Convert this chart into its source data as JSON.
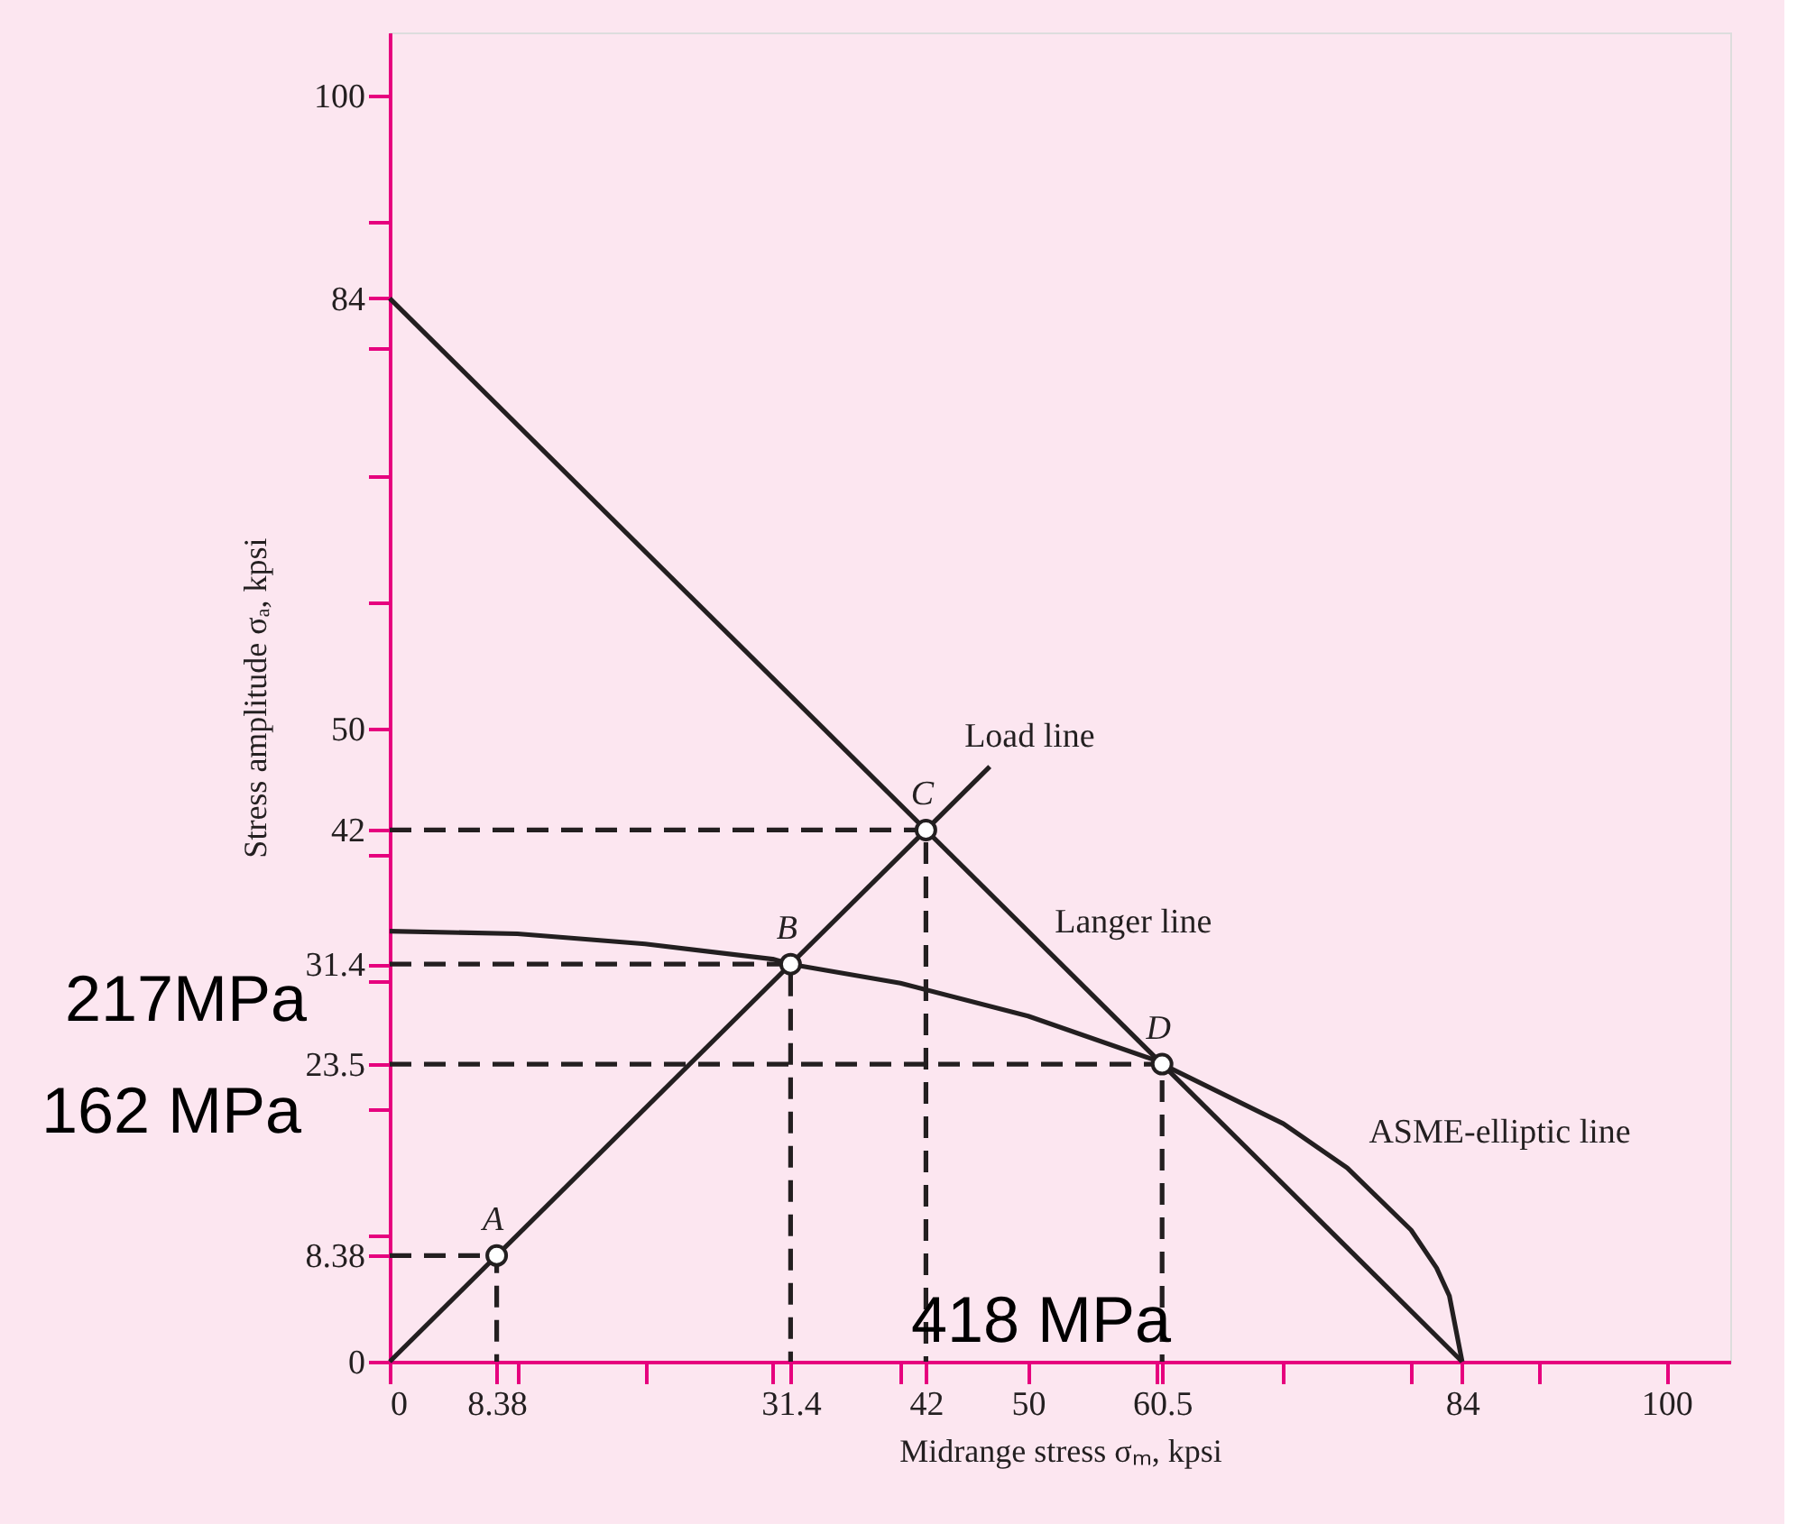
{
  "chart_data": {
    "type": "line",
    "xlabel": "Midrange stress σₘ, kpsi",
    "ylabel": "Stress amplitude σₐ, kpsi",
    "xlim": [
      0,
      105
    ],
    "ylim": [
      0,
      105
    ],
    "xticks": [
      0,
      8.38,
      {
        "value": 10,
        "label": null
      },
      {
        "value": 20,
        "label": null
      },
      {
        "value": 30,
        "label": null
      },
      31.4,
      {
        "value": 40,
        "label": null
      },
      42,
      50,
      {
        "value": 60,
        "label": null
      },
      60.5,
      {
        "value": 70,
        "label": null
      },
      {
        "value": 80,
        "label": null
      },
      84,
      {
        "value": 90,
        "label": null
      },
      100
    ],
    "yticks": [
      0,
      8.38,
      {
        "value": 10,
        "label": null
      },
      {
        "value": 20,
        "label": null
      },
      23.5,
      {
        "value": 30,
        "label": null
      },
      31.4,
      {
        "value": 40,
        "label": null
      },
      42,
      50,
      {
        "value": 60,
        "label": null
      },
      {
        "value": 70,
        "label": null
      },
      {
        "value": 80,
        "label": null
      },
      84,
      {
        "value": 90,
        "label": null
      },
      100
    ],
    "grid": false,
    "legend": false,
    "series": [
      {
        "name": "Load line",
        "color": "#231f20",
        "line_style": "solid",
        "x": [
          0,
          47
        ],
        "values": [
          0,
          47
        ]
      },
      {
        "name": "Langer line",
        "color": "#231f20",
        "line_style": "solid",
        "x": [
          0,
          84
        ],
        "values": [
          84,
          0
        ]
      },
      {
        "name": "ASME-elliptic line",
        "color": "#231f20",
        "line_style": "solid",
        "x": [
          0,
          10,
          20,
          30,
          31.4,
          40,
          50,
          60,
          60.5,
          70,
          75,
          80,
          82,
          83,
          84
        ],
        "values": [
          34,
          33.8,
          33,
          31.8,
          31.4,
          29.9,
          27.3,
          23.8,
          23.5,
          18.8,
          15.3,
          10.4,
          7.4,
          5.2,
          0
        ]
      },
      {
        "type": "line",
        "color": "#231f20",
        "line_style": "dashed",
        "x": [
          0,
          8.38,
          8.38
        ],
        "values": [
          8.38,
          8.38,
          0
        ]
      },
      {
        "type": "line",
        "color": "#231f20",
        "line_style": "dashed",
        "x": [
          0,
          31.4,
          31.4
        ],
        "values": [
          31.4,
          31.4,
          0
        ]
      },
      {
        "type": "line",
        "color": "#231f20",
        "line_style": "dashed",
        "x": [
          0,
          42,
          42
        ],
        "values": [
          42,
          42,
          0
        ]
      },
      {
        "type": "line",
        "color": "#231f20",
        "line_style": "dashed",
        "x": [
          0,
          60.5,
          60.5
        ],
        "values": [
          23.5,
          23.5,
          0
        ]
      },
      {
        "type": "scatter",
        "color": "#231f20",
        "marker": "circle",
        "x": [
          8.38,
          31.4,
          42,
          60.5
        ],
        "values": [
          8.38,
          31.4,
          42,
          23.5
        ]
      }
    ],
    "annotations": [
      {
        "text": "A",
        "x": 8.38,
        "y": 8.38
      },
      {
        "text": "B",
        "x": 31.4,
        "y": 31.4
      },
      {
        "text": "C",
        "x": 42,
        "y": 42
      },
      {
        "text": "D",
        "x": 60.5,
        "y": 23.5
      },
      "217MPa",
      "162 MPa",
      "418 MPa"
    ]
  }
}
